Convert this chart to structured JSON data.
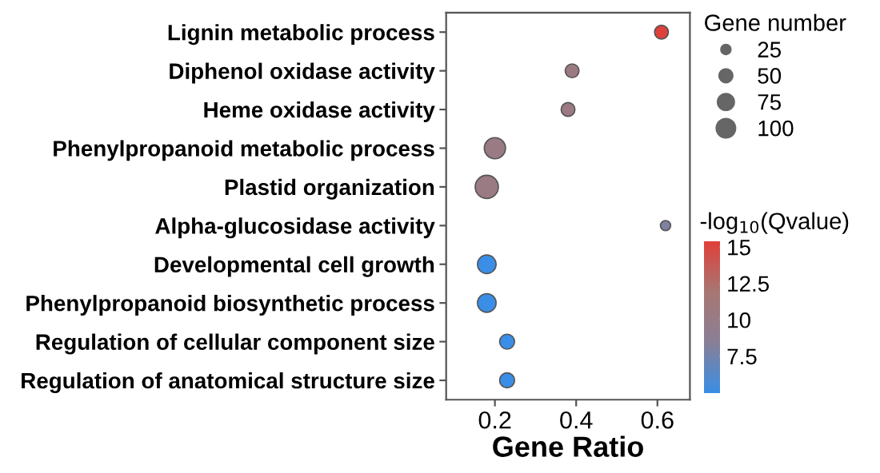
{
  "chart_data": {
    "type": "bubble",
    "categories": [
      "Lignin metabolic process",
      "Diphenol oxidase activity",
      "Heme oxidase activity",
      "Phenylpropanoid metabolic process",
      "Plastid organization",
      "Alpha-glucosidase activity",
      "Developmental cell growth",
      "Phenylpropanoid biosynthetic process",
      "Regulation of cellular component size",
      "Regulation of anatomical structure size"
    ],
    "orientation": "horizontal",
    "values": [
      0.61,
      0.39,
      0.38,
      0.2,
      0.18,
      0.62,
      0.18,
      0.18,
      0.23,
      0.23
    ],
    "sizes": [
      55,
      55,
      55,
      130,
      155,
      30,
      100,
      100,
      65,
      65
    ],
    "size_legend": [
      25,
      50,
      75,
      100
    ],
    "cvalues": [
      15.4,
      10.5,
      10.5,
      10.3,
      10.3,
      8,
      5,
      5,
      5,
      5
    ],
    "clim": [
      5,
      15.4
    ],
    "cticks": [
      7.5,
      10,
      12.5,
      15
    ],
    "clabel": "-log$_{10}$(Qvalue)",
    "legend_title": "Gene number",
    "xlabel": "Gene Ratio",
    "xlim": [
      0.08,
      0.68
    ],
    "xticks": [
      0.2,
      0.4,
      0.6
    ],
    "grid": false
  }
}
